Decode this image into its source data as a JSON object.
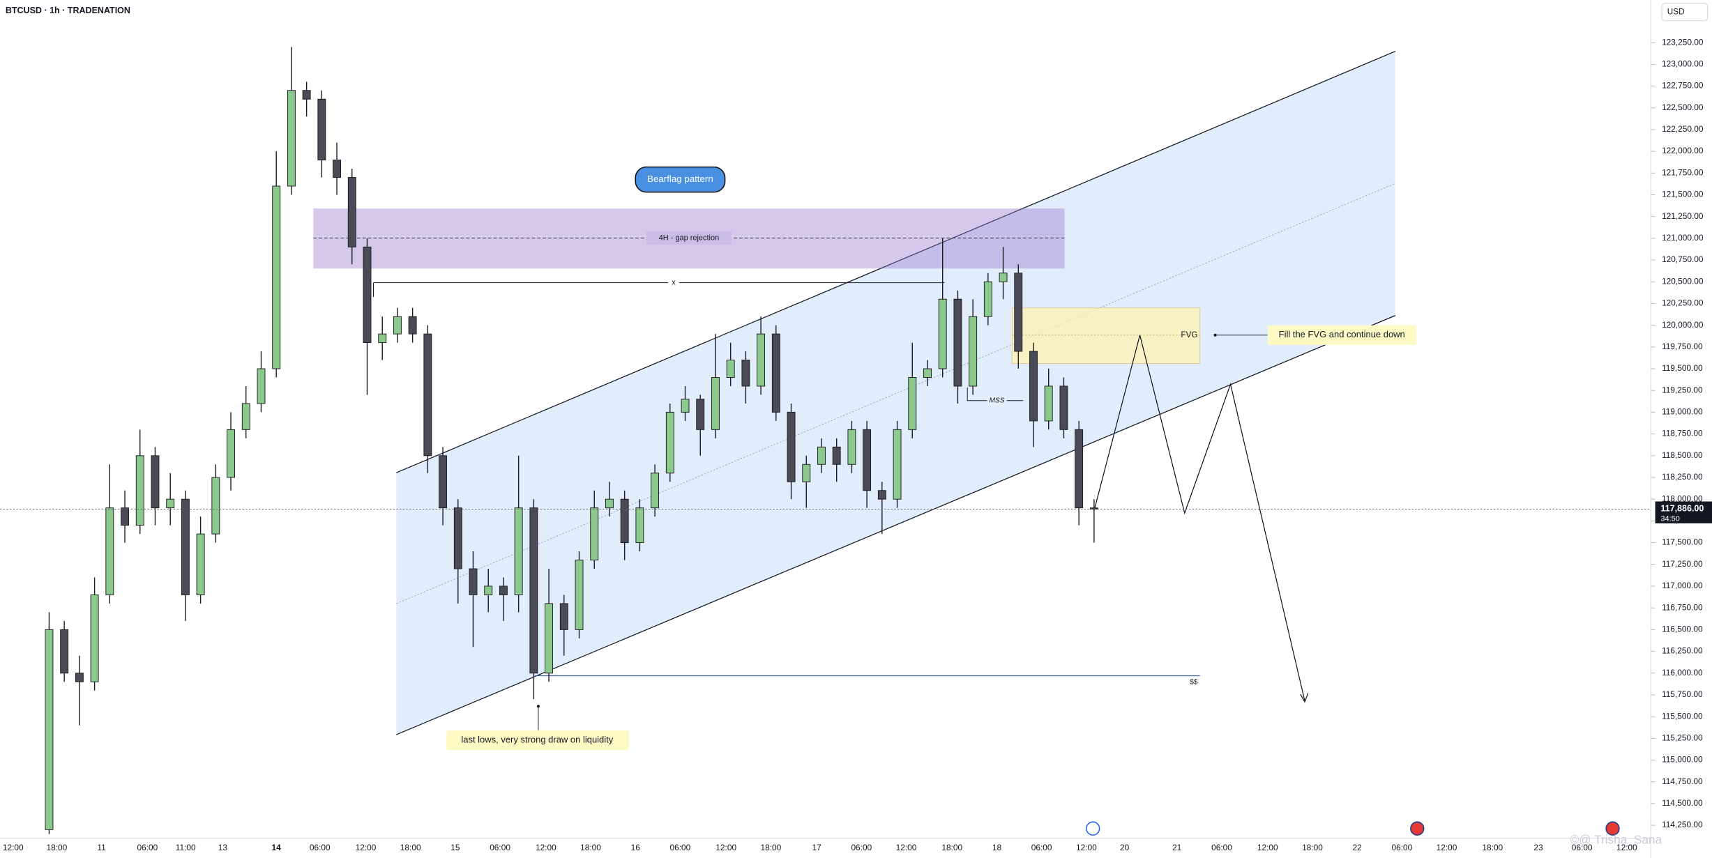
{
  "chart_data": {
    "type": "candlestick",
    "title": "BTCUSD · 1h · TRADENATION",
    "currency": "USD",
    "up_color": "#8cc98c",
    "down_color": "#4b4b57",
    "open": [
      114200,
      116500,
      116000,
      115900,
      116900,
      117900,
      117700,
      118500,
      117900,
      118000,
      116900,
      117600,
      118250,
      118800,
      119100,
      119500,
      121600,
      122700,
      122600,
      121900,
      121700,
      120900,
      119800,
      119900,
      120100,
      119900,
      118500,
      117900,
      117200,
      116900,
      117000,
      116900,
      117900,
      116000,
      116800,
      116500,
      117300,
      117900,
      118000,
      117500,
      117900,
      118300,
      119000,
      119150,
      118800,
      119400,
      119600,
      119300,
      119900,
      119000,
      118200,
      118400,
      118600,
      118400,
      118800,
      118100,
      118000,
      118800,
      119400,
      119500,
      120300,
      119300,
      120100,
      120500,
      120600,
      119700,
      118900,
      119300,
      118800,
      117900
    ],
    "high": [
      116700,
      116600,
      116200,
      117100,
      118400,
      118100,
      118800,
      118600,
      118300,
      118100,
      117800,
      118400,
      119000,
      119300,
      119700,
      122000,
      123200,
      122800,
      122700,
      122100,
      121800,
      121000,
      120100,
      120200,
      120200,
      120000,
      118600,
      118000,
      117400,
      117200,
      117100,
      118500,
      118000,
      117200,
      116900,
      117400,
      118100,
      118200,
      118100,
      118000,
      118400,
      119100,
      119300,
      119200,
      119900,
      119800,
      119700,
      120100,
      120000,
      119100,
      118500,
      118700,
      118700,
      118900,
      118900,
      118200,
      118900,
      119800,
      119600,
      121000,
      120400,
      120300,
      120600,
      120900,
      120700,
      119800,
      119500,
      119400,
      118900,
      118000
    ],
    "low": [
      114150,
      115900,
      115400,
      115800,
      116800,
      117500,
      117600,
      117700,
      117700,
      116600,
      116800,
      117500,
      118100,
      118700,
      119000,
      119400,
      121500,
      122400,
      121700,
      121500,
      120700,
      119200,
      119600,
      119800,
      119800,
      118300,
      117700,
      116800,
      116300,
      116700,
      116600,
      116700,
      115700,
      115900,
      116200,
      116400,
      117200,
      117800,
      117300,
      117400,
      117800,
      118200,
      118900,
      118500,
      118700,
      119300,
      119100,
      119200,
      118900,
      118000,
      117900,
      118300,
      118200,
      118300,
      117900,
      117600,
      117900,
      118700,
      119300,
      119400,
      119100,
      119200,
      120000,
      120300,
      119500,
      118600,
      118800,
      118700,
      117700,
      117500
    ],
    "close": [
      116500,
      116000,
      115900,
      116900,
      117900,
      117700,
      118500,
      117900,
      118000,
      116900,
      117600,
      118250,
      118800,
      119100,
      119500,
      121600,
      122700,
      122600,
      121900,
      121700,
      120900,
      119800,
      119900,
      120100,
      119900,
      118500,
      117900,
      117200,
      116900,
      117000,
      116900,
      117900,
      116000,
      116800,
      116500,
      117300,
      117900,
      118000,
      117500,
      117900,
      118300,
      119000,
      119150,
      118800,
      119400,
      119600,
      119300,
      119900,
      119000,
      118200,
      118400,
      118600,
      118400,
      118800,
      118100,
      118000,
      118800,
      119400,
      119500,
      120300,
      119300,
      120100,
      120500,
      120600,
      119700,
      118900,
      119300,
      118800,
      117900,
      117886
    ],
    "ylim": [
      114100,
      123740
    ],
    "yticks": [
      {
        "value": 123250,
        "label": "123,250.00"
      },
      {
        "value": 123000,
        "label": "123,000.00"
      },
      {
        "value": 122750,
        "label": "122,750.00"
      },
      {
        "value": 122500,
        "label": "122,500.00"
      },
      {
        "value": 122250,
        "label": "122,250.00"
      },
      {
        "value": 122000,
        "label": "122,000.00"
      },
      {
        "value": 121750,
        "label": "121,750.00"
      },
      {
        "value": 121500,
        "label": "121,500.00"
      },
      {
        "value": 121250,
        "label": "121,250.00"
      },
      {
        "value": 121000,
        "label": "121,000.00"
      },
      {
        "value": 120750,
        "label": "120,750.00"
      },
      {
        "value": 120500,
        "label": "120,500.00"
      },
      {
        "value": 120250,
        "label": "120,250.00"
      },
      {
        "value": 120000,
        "label": "120,000.00"
      },
      {
        "value": 119750,
        "label": "119,750.00"
      },
      {
        "value": 119500,
        "label": "119,500.00"
      },
      {
        "value": 119250,
        "label": "119,250.00"
      },
      {
        "value": 119000,
        "label": "119,000.00"
      },
      {
        "value": 118750,
        "label": "118,750.00"
      },
      {
        "value": 118500,
        "label": "118,500.00"
      },
      {
        "value": 118250,
        "label": "118,250.00"
      },
      {
        "value": 118000,
        "label": "118,000.00"
      },
      {
        "value": 117750,
        "label": "117,750.00"
      },
      {
        "value": 117500,
        "label": "117,500.00"
      },
      {
        "value": 117250,
        "label": "117,250.00"
      },
      {
        "value": 117000,
        "label": "117,000.00"
      },
      {
        "value": 116750,
        "label": "116,750.00"
      },
      {
        "value": 116500,
        "label": "116,500.00"
      },
      {
        "value": 116250,
        "label": "116,250.00"
      },
      {
        "value": 116000,
        "label": "116,000.00"
      },
      {
        "value": 115750,
        "label": "115,750.00"
      },
      {
        "value": 115500,
        "label": "115,500.00"
      },
      {
        "value": 115250,
        "label": "115,250.00"
      },
      {
        "value": 115000,
        "label": "115,000.00"
      },
      {
        "value": 114750,
        "label": "114,750.00"
      },
      {
        "value": 114500,
        "label": "114,500.00"
      },
      {
        "value": 114250,
        "label": "114,250.00"
      }
    ],
    "x_labels": [
      "12:00",
      "18:00",
      "11",
      "06:00",
      "11:00",
      "13",
      "14",
      "06:00",
      "12:00",
      "18:00",
      "15",
      "06:00",
      "12:00",
      "18:00",
      "16",
      "06:00",
      "12:00",
      "18:00",
      "17",
      "06:00",
      "12:00",
      "18:00",
      "18",
      "06:00",
      "12:00",
      "20",
      "21",
      "06:00",
      "12:00",
      "18:00",
      "22",
      "06:00",
      "12:00",
      "18:00",
      "23",
      "06:00",
      "12:00"
    ],
    "last_price": {
      "value": 117886,
      "label": "117,886.00"
    },
    "countdown": "34:50",
    "annotations": {
      "bearflag": "Bearflag pattern",
      "gap": "4H - gap rejection",
      "x": "x",
      "fvg": "FVG",
      "fill": "Fill the FVG and continue down",
      "mss": "MSS",
      "liquidity": "$$",
      "lows": "last lows, very strong draw on liquidity"
    },
    "watermark": "©@ Trisha_Sana"
  }
}
